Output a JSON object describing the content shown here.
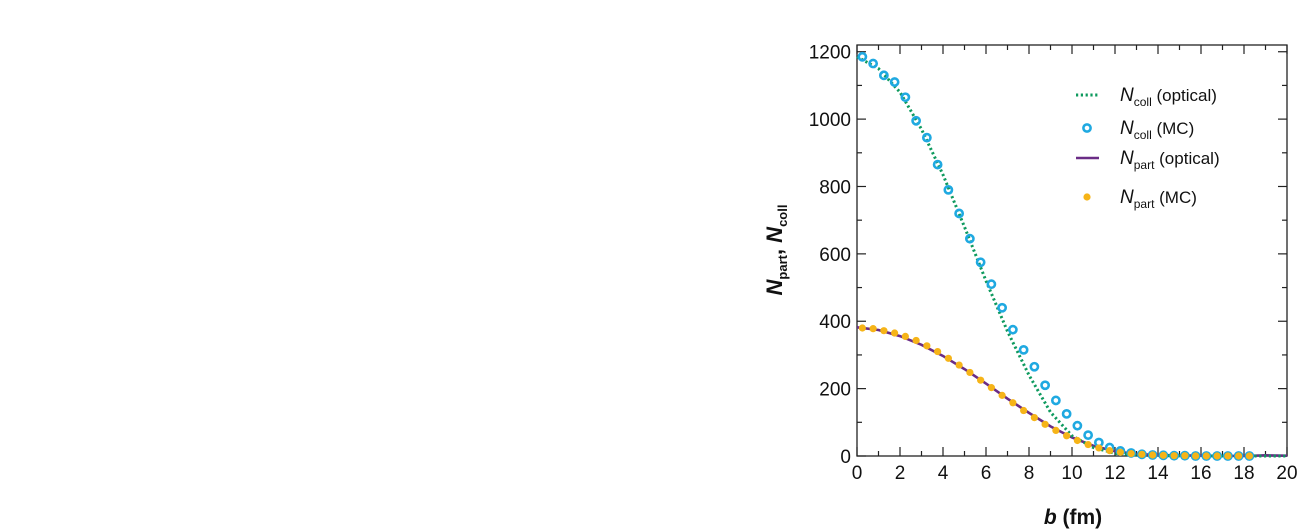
{
  "chart_data": {
    "type": "line",
    "xlabel": {
      "var": "b",
      "unit": " (fm)"
    },
    "ylabel": {
      "parts": [
        {
          "var": "N",
          "sub": "part"
        },
        {
          "text": ", "
        },
        {
          "var": "N",
          "sub": "coll"
        }
      ]
    },
    "xlim": [
      0,
      20
    ],
    "ylim": [
      0,
      1220
    ],
    "xticks": [
      0,
      2,
      4,
      6,
      8,
      10,
      12,
      14,
      16,
      18,
      20
    ],
    "yticks": [
      0,
      200,
      400,
      600,
      800,
      1000,
      1200
    ],
    "grid": false,
    "legend_position": "top-right",
    "series": [
      {
        "key": "ncoll_optical",
        "legend": {
          "var": "N",
          "sub": "coll",
          "suffix": " (optical)"
        },
        "style": "dotted",
        "color": "#0e9a5e",
        "x": [
          0,
          1,
          2,
          3,
          4,
          5,
          6,
          7,
          8,
          9,
          10,
          11,
          12,
          13,
          14,
          16,
          18,
          20
        ],
        "y": [
          1185,
          1150,
          1080,
          970,
          835,
          680,
          520,
          370,
          240,
          130,
          60,
          25,
          8,
          3,
          1,
          0,
          0,
          0
        ]
      },
      {
        "key": "ncoll_mc",
        "legend": {
          "var": "N",
          "sub": "coll",
          "suffix": " (MC)"
        },
        "style": "open-circle",
        "color": "#1fa9e1",
        "x": [
          0.25,
          0.75,
          1.25,
          1.75,
          2.25,
          2.75,
          3.25,
          3.75,
          4.25,
          4.75,
          5.25,
          5.75,
          6.25,
          6.75,
          7.25,
          7.75,
          8.25,
          8.75,
          9.25,
          9.75,
          10.25,
          10.75,
          11.25,
          11.75,
          12.25,
          12.75,
          13.25,
          13.75,
          14.25,
          14.75,
          15.25,
          15.75,
          16.25,
          16.75,
          17.25,
          17.75,
          18.25
        ],
        "y": [
          1185,
          1165,
          1130,
          1110,
          1065,
          995,
          945,
          865,
          790,
          720,
          645,
          575,
          510,
          440,
          375,
          315,
          265,
          210,
          165,
          125,
          90,
          62,
          40,
          25,
          15,
          9,
          5,
          3,
          2,
          1,
          1,
          0,
          0,
          0,
          0,
          0,
          0
        ]
      },
      {
        "key": "npart_optical",
        "legend": {
          "var": "N",
          "sub": "part",
          "suffix": " (optical)"
        },
        "style": "solid",
        "color": "#6a2c86",
        "x": [
          0,
          1,
          2,
          3,
          4,
          5,
          6,
          7,
          8,
          9,
          10,
          11,
          12,
          13,
          14,
          16,
          18,
          19,
          20
        ],
        "y": [
          382,
          374,
          356,
          330,
          297,
          258,
          215,
          170,
          128,
          88,
          55,
          30,
          14,
          6,
          3,
          1,
          0,
          2,
          1
        ]
      },
      {
        "key": "npart_mc",
        "legend": {
          "var": "N",
          "sub": "part",
          "suffix": " (MC)"
        },
        "style": "filled-circle",
        "color": "#f6b418",
        "x": [
          0.25,
          0.75,
          1.25,
          1.75,
          2.25,
          2.75,
          3.25,
          3.75,
          4.25,
          4.75,
          5.25,
          5.75,
          6.25,
          6.75,
          7.25,
          7.75,
          8.25,
          8.75,
          9.25,
          9.75,
          10.25,
          10.75,
          11.25,
          11.75,
          12.25,
          12.75,
          13.25,
          13.75,
          14.25,
          14.75,
          15.25,
          15.75,
          16.25,
          16.75,
          17.25,
          17.75,
          18.25
        ],
        "y": [
          380,
          378,
          372,
          365,
          355,
          343,
          327,
          310,
          290,
          270,
          248,
          225,
          203,
          180,
          158,
          135,
          114,
          94,
          76,
          60,
          46,
          34,
          24,
          16,
          11,
          7,
          5,
          3,
          2,
          1,
          1,
          0,
          0,
          0,
          0,
          0,
          0
        ]
      }
    ]
  }
}
